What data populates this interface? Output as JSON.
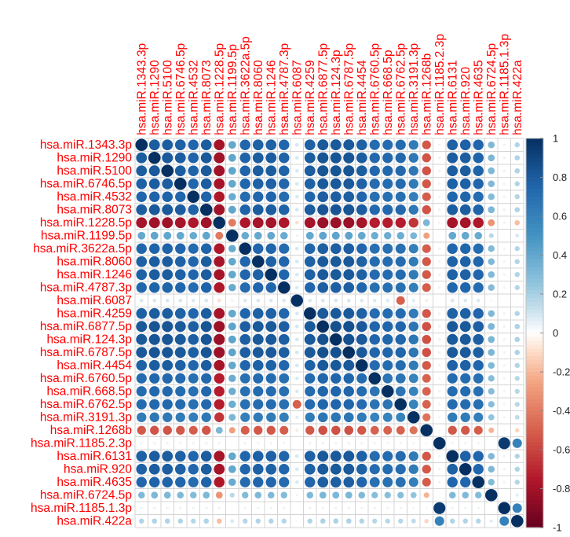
{
  "chart_data": {
    "type": "heatmap",
    "subtype": "correlation-circle-matrix",
    "title": "",
    "labels": [
      "hsa.miR.1343.3p",
      "hsa.miR.1290",
      "hsa.miR.5100",
      "hsa.miR.6746.5p",
      "hsa.miR.4532",
      "hsa.miR.8073",
      "hsa.miR.1228.5p",
      "hsa.miR.1199.5p",
      "hsa.miR.3622a.5p",
      "hsa.miR.8060",
      "hsa.miR.1246",
      "hsa.miR.4787.3p",
      "hsa.miR.6087",
      "hsa.miR.4259",
      "hsa.miR.6877.5p",
      "hsa.miR.124.3p",
      "hsa.miR.6787.5p",
      "hsa.miR.4454",
      "hsa.miR.6760.5p",
      "hsa.miR.668.5p",
      "hsa.miR.6762.5p",
      "hsa.miR.3191.3p",
      "hsa.miR.1268b",
      "hsa.miR.1185.2.3p",
      "hsa.miR.6131",
      "hsa.miR.920",
      "hsa.miR.4635",
      "hsa.miR.6724.5p",
      "hsa.miR.1185.1.3p",
      "hsa.miR.422a"
    ],
    "group_values": [
      0.88,
      0.9,
      0.9,
      0.88,
      0.85,
      0.9,
      -0.9,
      0.45,
      0.85,
      0.88,
      0.88,
      0.85,
      0.1,
      0.88,
      0.92,
      0.92,
      0.92,
      0.88,
      0.82,
      0.82,
      0.82,
      0.72,
      -0.6,
      0.05,
      0.88,
      0.88,
      0.85,
      0.35,
      0.05,
      0.2
    ],
    "special_pairs": [
      {
        "a": "hsa.miR.1185.2.3p",
        "b": "hsa.miR.1185.1.3p",
        "value": 0.95
      },
      {
        "a": "hsa.miR.1185.2.3p",
        "b": "hsa.miR.422a",
        "value": 0.6
      },
      {
        "a": "hsa.miR.1185.1.3p",
        "b": "hsa.miR.422a",
        "value": 0.6
      },
      {
        "a": "hsa.miR.6087",
        "b": "hsa.miR.6762.5p",
        "value": -0.5
      }
    ],
    "color_scale": {
      "stops": [
        {
          "value": -1,
          "color": "#67001F"
        },
        {
          "value": -0.75,
          "color": "#B2182B"
        },
        {
          "value": -0.5,
          "color": "#D6604D"
        },
        {
          "value": -0.25,
          "color": "#F4A582"
        },
        {
          "value": -0.1,
          "color": "#FDDBC7"
        },
        {
          "value": 0,
          "color": "#FFFFFF"
        },
        {
          "value": 0.1,
          "color": "#D1E5F0"
        },
        {
          "value": 0.25,
          "color": "#92C5DE"
        },
        {
          "value": 0.5,
          "color": "#4393C3"
        },
        {
          "value": 0.75,
          "color": "#2166AC"
        },
        {
          "value": 1,
          "color": "#053061"
        }
      ],
      "ticks": [
        "1",
        "0.8",
        "0.6",
        "0.4",
        "0.2",
        "0",
        "-0.2",
        "-0.4",
        "-0.6",
        "-0.8",
        "-1"
      ],
      "tick_values": [
        1,
        0.8,
        0.6,
        0.4,
        0.2,
        0,
        -0.2,
        -0.4,
        -0.6,
        -0.8,
        -1
      ],
      "range": [
        -1,
        1
      ]
    },
    "label_color": "#FF0000",
    "grid": true,
    "legend": "right"
  }
}
